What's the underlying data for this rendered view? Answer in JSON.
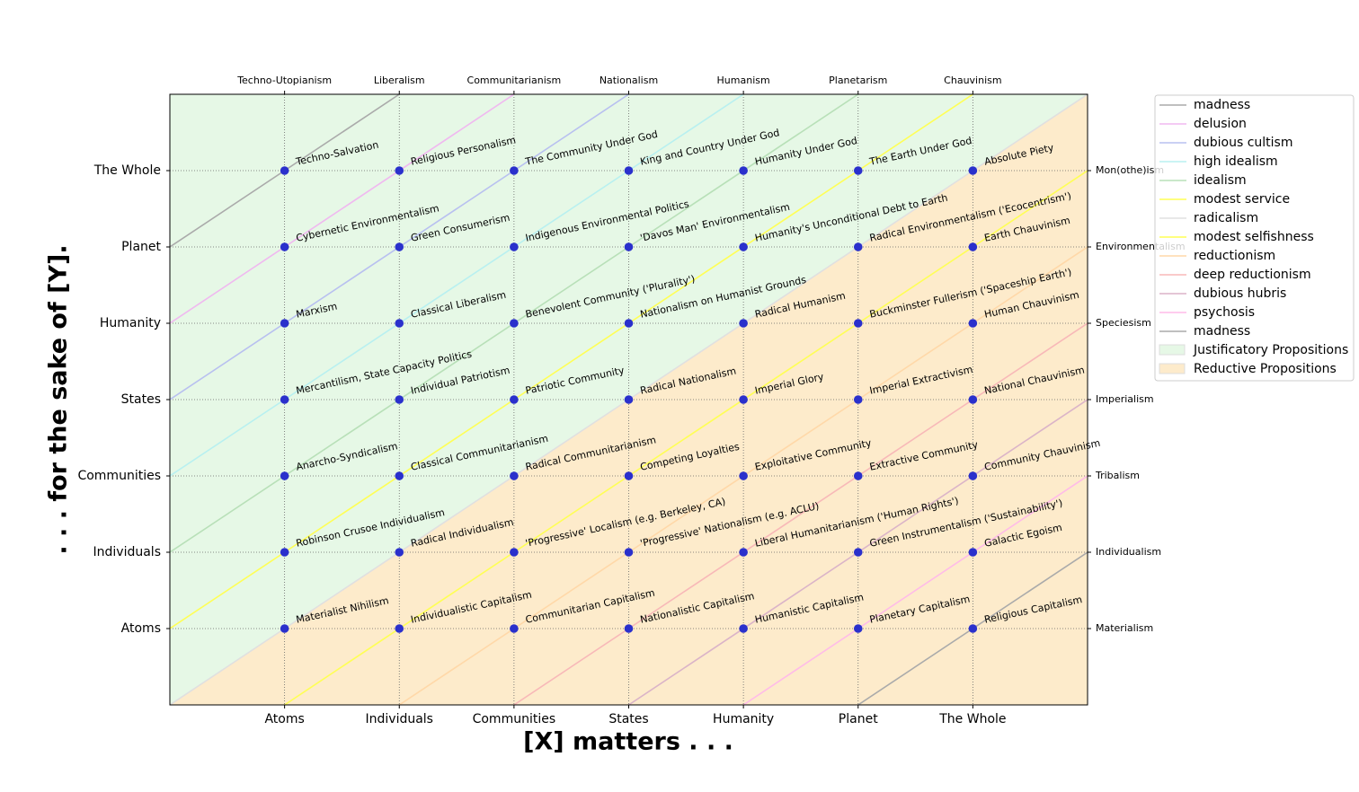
{
  "chart_data": {
    "type": "line",
    "xlabel": "[X] matters . . .",
    "ylabel": ". . . for the sake of [Y].",
    "xlim": [
      0,
      8
    ],
    "ylim": [
      0,
      8
    ],
    "xticks": [
      {
        "value": 1,
        "label": "Atoms"
      },
      {
        "value": 2,
        "label": "Individuals"
      },
      {
        "value": 3,
        "label": "Communities"
      },
      {
        "value": 4,
        "label": "States"
      },
      {
        "value": 5,
        "label": "Humanity"
      },
      {
        "value": 6,
        "label": "Planet"
      },
      {
        "value": 7,
        "label": "The Whole"
      }
    ],
    "yticks": [
      {
        "value": 1,
        "label": "Atoms"
      },
      {
        "value": 2,
        "label": "Individuals"
      },
      {
        "value": 3,
        "label": "Communities"
      },
      {
        "value": 4,
        "label": "States"
      },
      {
        "value": 5,
        "label": "Humanity"
      },
      {
        "value": 6,
        "label": "Planet"
      },
      {
        "value": 7,
        "label": "The Whole"
      }
    ],
    "x2ticks": [
      {
        "value": 1,
        "label": "Techno-Utopianism"
      },
      {
        "value": 2,
        "label": "Liberalism"
      },
      {
        "value": 3,
        "label": "Communitarianism"
      },
      {
        "value": 4,
        "label": "Nationalism"
      },
      {
        "value": 5,
        "label": "Humanism"
      },
      {
        "value": 6,
        "label": "Planetarism"
      },
      {
        "value": 7,
        "label": "Chauvinism"
      }
    ],
    "y2ticks": [
      {
        "value": 1,
        "label": "Materialism"
      },
      {
        "value": 2,
        "label": "Individualism"
      },
      {
        "value": 3,
        "label": "Tribalism"
      },
      {
        "value": 4,
        "label": "Imperialism"
      },
      {
        "value": 5,
        "label": "Speciesism"
      },
      {
        "value": 6,
        "label": "Environmentalism"
      },
      {
        "value": 7,
        "label": "Mon(othe)ism"
      }
    ],
    "grid": true,
    "legend": "outside-upper-right",
    "regions": [
      {
        "name": "Justificatory Propositions",
        "color": "#e6f8e6",
        "x": [
          0,
          8
        ],
        "lower": [
          0,
          8
        ],
        "upper": [
          8,
          8
        ]
      },
      {
        "name": "Reductive Propositions",
        "color": "#fdebcb",
        "x": [
          0,
          8
        ],
        "lower": [
          0,
          0
        ],
        "upper": [
          0,
          8
        ]
      }
    ],
    "series": [
      {
        "name": "madness",
        "color": "#aaaaaa",
        "x": [
          0,
          2
        ],
        "values": [
          6,
          8
        ]
      },
      {
        "name": "delusion",
        "color": "#f0b8f0",
        "x": [
          0,
          3
        ],
        "values": [
          5,
          8
        ]
      },
      {
        "name": "dubious cultism",
        "color": "#b8c0f0",
        "x": [
          0,
          4
        ],
        "values": [
          4,
          8
        ]
      },
      {
        "name": "high idealism",
        "color": "#b8f0f0",
        "x": [
          0,
          5
        ],
        "values": [
          3,
          8
        ]
      },
      {
        "name": "idealism",
        "color": "#b8e0b8",
        "x": [
          0,
          6
        ],
        "values": [
          2,
          8
        ]
      },
      {
        "name": "modest service",
        "color": "#ffff55",
        "x": [
          0,
          7
        ],
        "values": [
          1,
          8
        ]
      },
      {
        "name": "radicalism",
        "color": "#e0e0e0",
        "x": [
          0,
          8
        ],
        "values": [
          0,
          8
        ]
      },
      {
        "name": "modest selfishness",
        "color": "#ffff55",
        "x": [
          1,
          8
        ],
        "values": [
          0,
          7
        ]
      },
      {
        "name": "reductionism",
        "color": "#ffd8a8",
        "x": [
          2,
          8
        ],
        "values": [
          0,
          6
        ]
      },
      {
        "name": "deep reductionism",
        "color": "#f8b8b8",
        "x": [
          3,
          8
        ],
        "values": [
          0,
          5
        ]
      },
      {
        "name": "dubious hubris",
        "color": "#dbb4c8",
        "x": [
          4,
          8
        ],
        "values": [
          0,
          4
        ]
      },
      {
        "name": "psychosis",
        "color": "#ffbbe8",
        "x": [
          5,
          8
        ],
        "values": [
          0,
          3
        ]
      },
      {
        "name": "madness",
        "color": "#aaaaaa",
        "x": [
          6,
          8
        ],
        "values": [
          0,
          2
        ]
      }
    ],
    "points": {
      "color": "#2a30cc",
      "x": [
        1,
        2,
        3,
        4,
        5,
        6,
        7,
        1,
        2,
        3,
        4,
        5,
        6,
        7,
        1,
        2,
        3,
        4,
        5,
        6,
        7,
        1,
        2,
        3,
        4,
        5,
        6,
        7,
        1,
        2,
        3,
        4,
        5,
        6,
        7,
        1,
        2,
        3,
        4,
        5,
        6,
        7,
        1,
        2,
        3,
        4,
        5,
        6,
        7
      ],
      "y": [
        7,
        7,
        7,
        7,
        7,
        7,
        7,
        6,
        6,
        6,
        6,
        6,
        6,
        6,
        5,
        5,
        5,
        5,
        5,
        5,
        5,
        4,
        4,
        4,
        4,
        4,
        4,
        4,
        3,
        3,
        3,
        3,
        3,
        3,
        3,
        2,
        2,
        2,
        2,
        2,
        2,
        2,
        1,
        1,
        1,
        1,
        1,
        1,
        1
      ],
      "labels": [
        "Techno-Salvation",
        "Religious Personalism",
        "The Community Under God",
        "King and Country Under God",
        "Humanity Under God",
        "The Earth Under God",
        "Absolute Piety",
        "Cybernetic Environmentalism",
        "Green Consumerism",
        "Indigenous Environmental Politics",
        "'Davos Man' Environmentalism",
        "Humanity's Unconditional Debt to Earth",
        "Radical Environmentalism ('Ecocentrism')",
        "Earth Chauvinism",
        "Marxism",
        "Classical Liberalism",
        "Benevolent Community ('Plurality')",
        "Nationalism on Humanist Grounds",
        "Radical Humanism",
        "Buckminster Fullerism ('Spaceship Earth')",
        "Human Chauvinism",
        "Mercantilism, State Capacity Politics",
        "Individual Patriotism",
        "Patriotic Community",
        "Radical Nationalism",
        "Imperial Glory",
        "Imperial Extractivism",
        "National Chauvinism",
        "Anarcho-Syndicalism",
        "Classical Communitarianism",
        "Radical Communitarianism",
        "Competing Loyalties",
        "Exploitative Community",
        "Extractive Community",
        "Community Chauvinism",
        "Robinson Crusoe Individualism",
        "Radical Individualism",
        "'Progressive' Localism (e.g. Berkeley, CA)",
        "'Progressive' Nationalism (e.g. ACLU)",
        "Liberal Humanitarianism ('Human Rights')",
        "Green Instrumentalism ('Sustainability')",
        "Galactic Egoism",
        "Materialist Nihilism",
        "Individualistic Capitalism",
        "Communitarian Capitalism",
        "Nationalistic Capitalism",
        "Humanistic Capitalism",
        "Planetary Capitalism",
        "Religious Capitalism"
      ]
    }
  }
}
